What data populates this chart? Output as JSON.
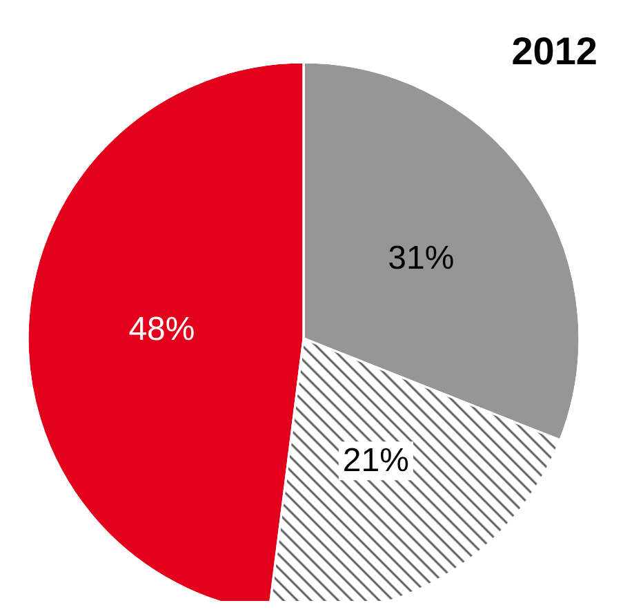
{
  "chart_data": {
    "type": "pie",
    "title": "2012",
    "categories": [
      null,
      null,
      null
    ],
    "values": [
      31,
      21,
      48
    ],
    "colors": [
      "#969696",
      "#ffffff",
      "#e2001a"
    ],
    "value_labels": [
      "31%",
      "21%",
      "48%"
    ]
  }
}
